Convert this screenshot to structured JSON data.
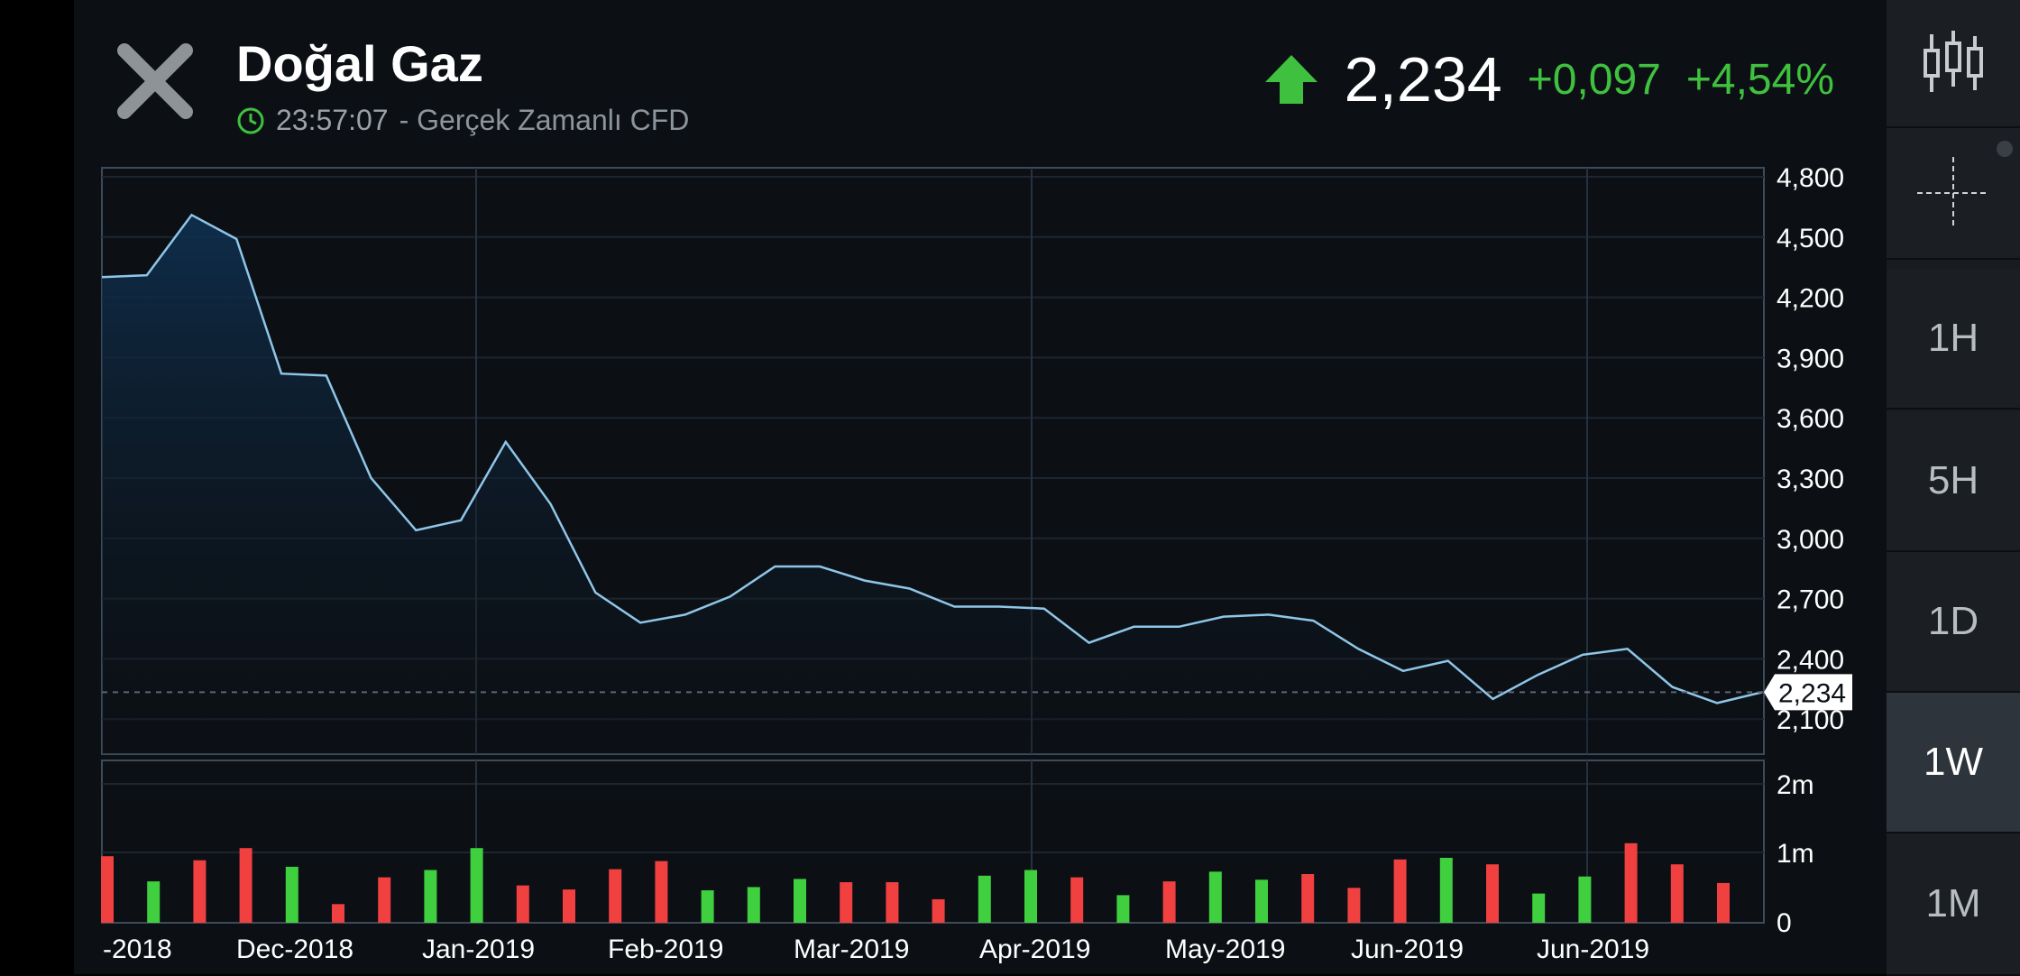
{
  "header": {
    "title": "Doğal Gaz",
    "time": "23:57:07",
    "subtitle_suffix": "- Gerçek Zamanlı CFD",
    "price": "2,234",
    "change": "+0,097",
    "change_pct": "+4,54%",
    "direction_icon": "arrow-up-icon",
    "up_color": "#3fc13f"
  },
  "toolbar": {
    "items": [
      {
        "label": "",
        "icon": "candlestick-icon"
      },
      {
        "label": "",
        "icon": "crosshair-icon"
      },
      {
        "label": "1H"
      },
      {
        "label": "5H"
      },
      {
        "label": "1D"
      },
      {
        "label": "1W"
      },
      {
        "label": "1M"
      }
    ],
    "active": "1W"
  },
  "chart_data": [
    {
      "type": "area",
      "x_tick_labels": [
        "-2018",
        "Dec-2018",
        "Jan-2019",
        "Feb-2019",
        "Mar-2019",
        "Apr-2019",
        "May-2019",
        "Jun-2019",
        "Jun-2019"
      ],
      "y_tick_labels": [
        "4,800",
        "4,500",
        "4,200",
        "3,900",
        "3,600",
        "3,300",
        "3,000",
        "2,700",
        "2,400",
        "2,100"
      ],
      "ylim": [
        1930,
        4850
      ],
      "values": [
        4.3,
        4.31,
        4.61,
        4.49,
        3.82,
        3.81,
        3.3,
        3.04,
        3.09,
        3.48,
        3.17,
        2.73,
        2.58,
        2.62,
        2.71,
        2.86,
        2.86,
        2.79,
        2.75,
        2.66,
        2.66,
        2.65,
        2.48,
        2.56,
        2.56,
        2.61,
        2.62,
        2.59,
        2.45,
        2.34,
        2.39,
        2.2,
        2.32,
        2.42,
        2.45,
        2.26,
        2.18,
        2.234
      ],
      "last_value_label": "2,234",
      "line_color": "#8fc6e8"
    },
    {
      "type": "bar",
      "y_tick_labels": [
        "2m",
        "1m",
        "0"
      ],
      "ylim": [
        0,
        2000000
      ],
      "values": [
        820000,
        510000,
        770000,
        920000,
        690000,
        230000,
        560000,
        650000,
        920000,
        460000,
        410000,
        660000,
        760000,
        400000,
        440000,
        540000,
        500000,
        500000,
        290000,
        580000,
        650000,
        560000,
        340000,
        510000,
        630000,
        530000,
        600000,
        430000,
        780000,
        800000,
        720000,
        360000,
        570000,
        980000,
        720000,
        490000
      ],
      "colors": [
        "down",
        "up",
        "down",
        "down",
        "up",
        "down",
        "down",
        "up",
        "up",
        "down",
        "down",
        "down",
        "down",
        "up",
        "up",
        "up",
        "down",
        "down",
        "down",
        "up",
        "up",
        "down",
        "up",
        "down",
        "up",
        "up",
        "down",
        "down",
        "down",
        "up",
        "down",
        "up",
        "up",
        "down",
        "down",
        "down"
      ],
      "up_color": "#3fcf3f",
      "down_color": "#f04040"
    }
  ]
}
